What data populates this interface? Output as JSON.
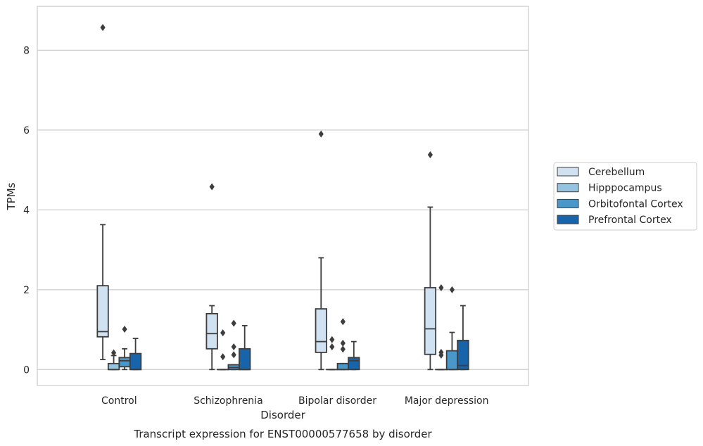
{
  "chart_data": {
    "type": "box",
    "title": "",
    "caption": "Transcript expression for ENST00000577658 by disorder",
    "xlabel": "Disorder",
    "ylabel": "TPMs",
    "ylim": [
      -0.4,
      9.1
    ],
    "yticks": [
      0,
      2,
      4,
      6,
      8
    ],
    "grid": "horizontal",
    "legend_position": "right",
    "categories": [
      "Control",
      "Schizophrenia",
      "Bipolar disorder",
      "Major depression"
    ],
    "series": [
      {
        "name": "Cerebellum",
        "color": "#d0e1f2",
        "boxes": [
          {
            "whisker_low": 0.25,
            "q1": 0.82,
            "median": 0.95,
            "q3": 2.1,
            "whisker_high": 3.63,
            "outliers": [
              8.57
            ]
          },
          {
            "whisker_low": 0.0,
            "q1": 0.52,
            "median": 0.9,
            "q3": 1.4,
            "whisker_high": 1.6,
            "outliers": [
              4.58
            ]
          },
          {
            "whisker_low": 0.0,
            "q1": 0.43,
            "median": 0.7,
            "q3": 1.52,
            "whisker_high": 2.8,
            "outliers": [
              5.9
            ]
          },
          {
            "whisker_low": 0.0,
            "q1": 0.38,
            "median": 1.02,
            "q3": 2.05,
            "whisker_high": 4.07,
            "outliers": [
              5.38
            ]
          }
        ]
      },
      {
        "name": "Hipppocampus",
        "color": "#94c4df",
        "boxes": [
          {
            "whisker_low": 0.0,
            "q1": 0.0,
            "median": 0.0,
            "q3": 0.15,
            "whisker_high": 0.35,
            "outliers": [
              0.42
            ]
          },
          {
            "whisker_low": 0.0,
            "q1": 0.0,
            "median": 0.0,
            "q3": 0.0,
            "whisker_high": 0.0,
            "outliers": [
              0.92,
              0.32
            ]
          },
          {
            "whisker_low": 0.0,
            "q1": 0.0,
            "median": 0.0,
            "q3": 0.0,
            "whisker_high": 0.0,
            "outliers": [
              0.75,
              0.57
            ]
          },
          {
            "whisker_low": 0.0,
            "q1": 0.0,
            "median": 0.0,
            "q3": 0.0,
            "whisker_high": 0.0,
            "outliers": [
              2.05,
              0.43,
              0.36
            ]
          }
        ]
      },
      {
        "name": "Orbitofontal Cortex",
        "color": "#4a98c9",
        "boxes": [
          {
            "whisker_low": 0.0,
            "q1": 0.07,
            "median": 0.22,
            "q3": 0.3,
            "whisker_high": 0.52,
            "outliers": [
              1.01
            ]
          },
          {
            "whisker_low": 0.0,
            "q1": 0.0,
            "median": 0.05,
            "q3": 0.12,
            "whisker_high": 0.12,
            "outliers": [
              1.16,
              0.57,
              0.37
            ]
          },
          {
            "whisker_low": 0.0,
            "q1": 0.0,
            "median": 0.0,
            "q3": 0.15,
            "whisker_high": 0.15,
            "outliers": [
              1.2,
              0.66,
              0.51
            ]
          },
          {
            "whisker_low": 0.0,
            "q1": 0.0,
            "median": 0.0,
            "q3": 0.47,
            "whisker_high": 0.93,
            "outliers": [
              2.0
            ]
          }
        ]
      },
      {
        "name": "Prefrontal Cortex",
        "color": "#1764ab",
        "boxes": [
          {
            "whisker_low": 0.0,
            "q1": 0.0,
            "median": 0.0,
            "q3": 0.4,
            "whisker_high": 0.78,
            "outliers": []
          },
          {
            "whisker_low": 0.0,
            "q1": 0.0,
            "median": 0.0,
            "q3": 0.52,
            "whisker_high": 1.1,
            "outliers": []
          },
          {
            "whisker_low": 0.0,
            "q1": 0.0,
            "median": 0.22,
            "q3": 0.3,
            "whisker_high": 0.7,
            "outliers": []
          },
          {
            "whisker_low": 0.0,
            "q1": 0.0,
            "median": 0.1,
            "q3": 0.73,
            "whisker_high": 1.6,
            "outliers": []
          }
        ]
      }
    ]
  }
}
